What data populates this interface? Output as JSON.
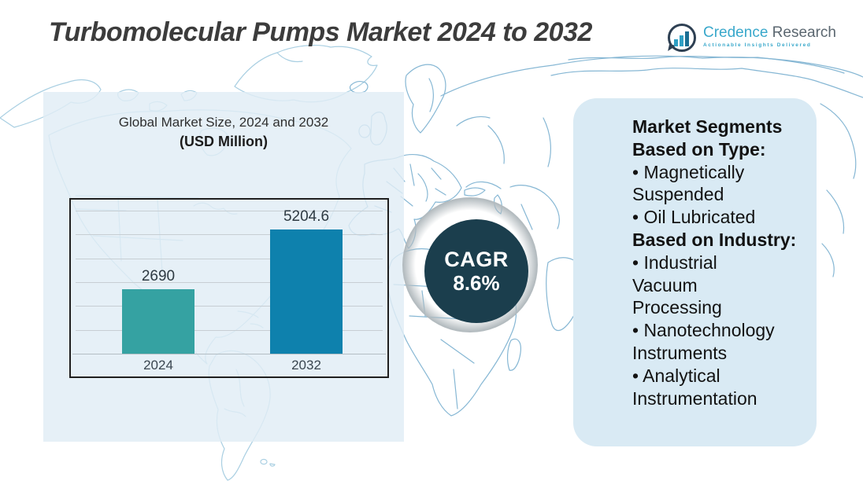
{
  "title": "Turbomolecular Pumps Market 2024 to 2032",
  "logo": {
    "brand_primary": "Credence",
    "brand_secondary": "Research",
    "tagline": "Actionable Insights Delivered"
  },
  "chart_panel": {
    "title_line1": "Global Market Size, 2024 and 2032",
    "title_line2": "(USD Million)"
  },
  "chart_data": {
    "type": "bar",
    "title": "Global Market Size, 2024 and 2032 (USD Million)",
    "categories": [
      "2024",
      "2032"
    ],
    "values": [
      2690,
      5204.6
    ],
    "value_labels": [
      "2690",
      "5204.6"
    ],
    "bar_colors": [
      "#35a2a2",
      "#0e81ad"
    ],
    "ylim": [
      0,
      5600
    ],
    "grid": true,
    "gridline_count": 7,
    "legend": false
  },
  "cagr": {
    "label": "CAGR",
    "value": "8.6%"
  },
  "segments_panel": {
    "lines": [
      {
        "text": "Market Segments",
        "bold": true
      },
      {
        "text": "Based on Type:",
        "bold": true
      },
      {
        "text": "• Magnetically",
        "bold": false
      },
      {
        "text": "Suspended",
        "bold": false
      },
      {
        "text": "• Oil Lubricated",
        "bold": false
      },
      {
        "text": "Based on Industry:",
        "bold": true
      },
      {
        "text": "• Industrial",
        "bold": false
      },
      {
        "text": "Vacuum",
        "bold": false
      },
      {
        "text": "Processing",
        "bold": false
      },
      {
        "text": "• Nanotechnology",
        "bold": false
      },
      {
        "text": "Instruments",
        "bold": false
      },
      {
        "text": "• Analytical",
        "bold": false
      },
      {
        "text": "Instrumentation",
        "bold": false
      }
    ]
  },
  "colors": {
    "title_text": "#3c3c3c",
    "bar_2024": "#35a2a2",
    "bar_2032": "#0e81ad",
    "cagr_circle": "#1b3e4d",
    "panel_left": "#e4eef5",
    "panel_right": "#d9eaf4",
    "map_line_light": "#a9cfe2",
    "map_line_dark": "#86b7d4",
    "brand_teal": "#39a8cb",
    "brand_dark": "#2e4053"
  }
}
